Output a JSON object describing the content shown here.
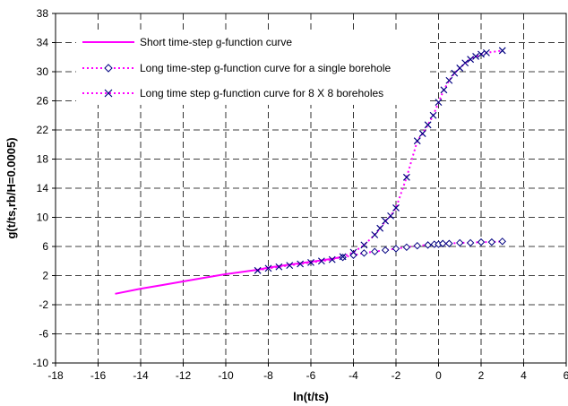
{
  "chart_data": {
    "type": "line",
    "xlabel": "ln(t/ts)",
    "ylabel": "g(t/ts,rb/H=0.0005)",
    "xlim": [
      -18,
      6
    ],
    "ylim": [
      -10,
      38
    ],
    "x_ticks": [
      -18,
      -16,
      -14,
      -12,
      -10,
      -8,
      -6,
      -4,
      -2,
      0,
      2,
      4,
      6
    ],
    "y_ticks": [
      -10,
      -6,
      -2,
      2,
      6,
      10,
      14,
      18,
      22,
      26,
      30,
      34,
      38
    ],
    "x_tick_labels": [
      "-18",
      "-16",
      "-14",
      "-12",
      "-10",
      "-8",
      "-6",
      "-4",
      "-2",
      "0",
      "2",
      "4",
      "6"
    ],
    "y_tick_labels": [
      "-10",
      "-6",
      "-2",
      "2",
      "6",
      "10",
      "14",
      "18",
      "22",
      "26",
      "30",
      "34",
      "38"
    ],
    "grid": true,
    "legend": "top-left",
    "series": [
      {
        "name": "Short time-step g-function curve",
        "color": "#ff00ff",
        "line": "solid",
        "marker": "none",
        "x": [
          -15.2,
          -14,
          -13,
          -12,
          -11,
          -10,
          -9,
          -8.5,
          -8,
          -7,
          -6,
          -5,
          -4.5
        ],
        "y": [
          -0.5,
          0.2,
          0.7,
          1.2,
          1.7,
          2.2,
          2.6,
          2.8,
          3.1,
          3.5,
          3.9,
          4.3,
          4.6
        ]
      },
      {
        "name": "Long time-step g-function curve for a single borehole",
        "color": "#ff00ff",
        "line": "dotted",
        "marker": "diamond",
        "marker_color": "#000080",
        "x": [
          -4.5,
          -4,
          -3.5,
          -3,
          -2.5,
          -2,
          -1.5,
          -1,
          -0.5,
          -0.2,
          0,
          0.2,
          0.5,
          1,
          1.5,
          2,
          2.5,
          3
        ],
        "y": [
          4.5,
          4.8,
          5.1,
          5.3,
          5.5,
          5.7,
          5.9,
          6.1,
          6.2,
          6.3,
          6.3,
          6.4,
          6.4,
          6.5,
          6.5,
          6.6,
          6.6,
          6.7
        ]
      },
      {
        "name": "Long time step g-function curve for 8 X 8 boreholes",
        "color": "#ff00ff",
        "line": "dotted",
        "marker": "x",
        "marker_color": "#000080",
        "x": [
          -8.5,
          -8,
          -7.5,
          -7,
          -6.5,
          -6,
          -5.5,
          -5,
          -4.5,
          -4,
          -3.5,
          -3,
          -2.75,
          -2.5,
          -2.25,
          -2,
          -1.5,
          -1,
          -0.75,
          -0.5,
          -0.25,
          0,
          0.25,
          0.5,
          0.75,
          1,
          1.25,
          1.5,
          1.75,
          2,
          2.25,
          3
        ],
        "y": [
          2.7,
          3.0,
          3.2,
          3.4,
          3.6,
          3.8,
          4.0,
          4.2,
          4.6,
          5.2,
          6.2,
          7.6,
          8.5,
          9.5,
          10.2,
          11.3,
          15.5,
          20.5,
          21.5,
          22.7,
          24.0,
          25.8,
          27.5,
          28.8,
          29.8,
          30.5,
          31.2,
          31.7,
          32.1,
          32.4,
          32.6,
          32.9
        ]
      }
    ]
  }
}
